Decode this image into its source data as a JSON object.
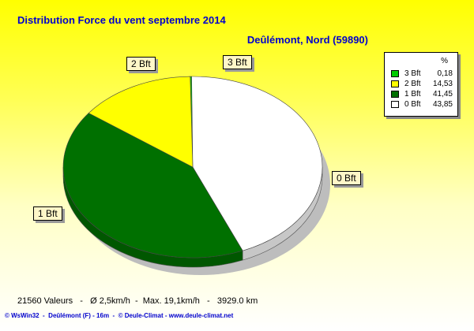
{
  "chart_data": {
    "type": "pie",
    "title": "Distribution Force du vent  septembre 2014",
    "subtitle": "Deûlémont, Nord (59890)",
    "legend_header": "%",
    "slices": [
      {
        "label": "3 Bft",
        "value": 0.18,
        "value_text": "0,18",
        "color": "#00cc00"
      },
      {
        "label": "2 Bft",
        "value": 14.53,
        "value_text": "14,53",
        "color": "#ffff00"
      },
      {
        "label": "1 Bft",
        "value": 41.45,
        "value_text": "41,45",
        "color": "#007000"
      },
      {
        "label": "0 Bft",
        "value": 43.85,
        "value_text": "43,85",
        "color": "#ffffff"
      }
    ],
    "legend_placement": "top-right"
  },
  "stats_line": "21560 Valeurs   -   Ø 2,5km/h  -  Max. 19,1km/h   -   3929.0 km",
  "footer": "© WsWin32  -  Deûlémont (F) - 16m  -  © Deule-Climat - www.deule-climat.net"
}
